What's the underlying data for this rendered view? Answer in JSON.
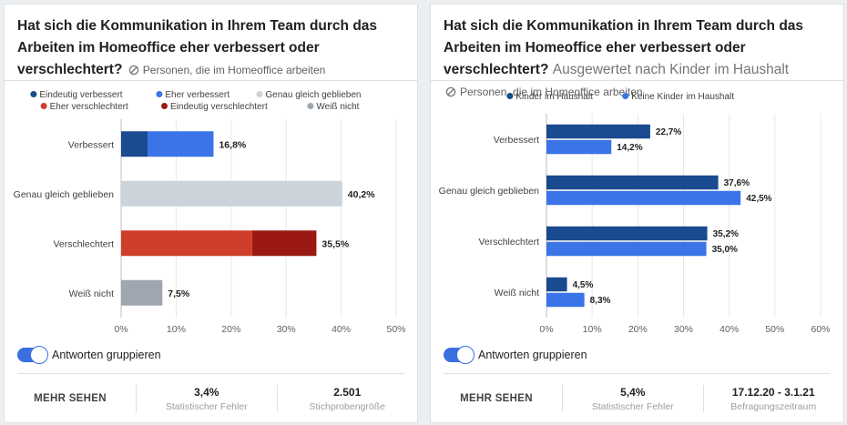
{
  "left": {
    "title": "Hat sich die Kommunikation in Ihrem Team durch das Arbeiten im Homeoffice eher verbessert oder verschlechtert?",
    "subtitle": "",
    "filter": "Personen, die im Homeoffice arbeiten",
    "toggle_label": "Antworten gruppieren",
    "more_label": "MEHR SEHEN",
    "stats": [
      {
        "value": "3,4%",
        "label": "Statistischer Fehler"
      },
      {
        "value": "2.501",
        "label": "Stichprobengröße"
      }
    ]
  },
  "right": {
    "title": "Hat sich die Kommunikation in Ihrem Team durch das Arbeiten im Homeoffice eher verbessert oder verschlechtert?",
    "subtitle": "Ausgewertet nach Kinder im Haushalt",
    "filter": "Personen, die im Homeoffice arbeiten",
    "toggle_label": "Antworten gruppieren",
    "more_label": "MEHR SEHEN",
    "stats": [
      {
        "value": "5,4%",
        "label": "Statistischer Fehler"
      },
      {
        "value": "17.12.20 - 3.1.21",
        "label": "Befragungszeitraum"
      }
    ]
  },
  "colors": {
    "dark_blue": "#1a4a8f",
    "blue": "#3b74e6",
    "light_gray": "#ccd3da",
    "red": "#cf3e2b",
    "dark_red": "#9a1a13",
    "gray": "#9ea7b0",
    "accent": "#3a6fe0"
  },
  "chart_data": [
    {
      "type": "bar",
      "orientation": "horizontal",
      "stacked": true,
      "categories": [
        "Verbessert",
        "Genau gleich geblieben",
        "Verschlechtert",
        "Weiß nicht"
      ],
      "legend": [
        {
          "name": "Eindeutig verbessert",
          "color": "#1a4a8f"
        },
        {
          "name": "Eher verbessert",
          "color": "#3b74e6"
        },
        {
          "name": "Genau gleich geblieben",
          "color": "#ccd3da"
        },
        {
          "name": "Eher verschlechtert",
          "color": "#cf3e2b"
        },
        {
          "name": "Eindeutig verschlechtert",
          "color": "#9a1a13"
        },
        {
          "name": "Weiß nicht",
          "color": "#9ea7b0"
        }
      ],
      "bars": [
        {
          "category": "Verbessert",
          "total_label": "16,8%",
          "segments": [
            {
              "series": "Eindeutig verbessert",
              "value": 4.8
            },
            {
              "series": "Eher verbessert",
              "value": 12.0
            }
          ]
        },
        {
          "category": "Genau gleich geblieben",
          "total_label": "40,2%",
          "segments": [
            {
              "series": "Genau gleich geblieben",
              "value": 40.2
            }
          ]
        },
        {
          "category": "Verschlechtert",
          "total_label": "35,5%",
          "segments": [
            {
              "series": "Eher verschlechtert",
              "value": 23.8
            },
            {
              "series": "Eindeutig verschlechtert",
              "value": 11.7
            }
          ]
        },
        {
          "category": "Weiß nicht",
          "total_label": "7,5%",
          "segments": [
            {
              "series": "Weiß nicht",
              "value": 7.5
            }
          ]
        }
      ],
      "xlim": [
        0,
        50
      ],
      "xticks": [
        "0%",
        "10%",
        "20%",
        "30%",
        "40%",
        "50%"
      ],
      "grid": true,
      "legend_position": "top"
    },
    {
      "type": "bar",
      "orientation": "horizontal",
      "stacked": false,
      "categories": [
        "Verbessert",
        "Genau gleich geblieben",
        "Verschlechtert",
        "Weiß nicht"
      ],
      "series": [
        {
          "name": "Kinder im Haushalt",
          "color": "#1a4a8f",
          "values": [
            22.7,
            37.6,
            35.2,
            4.5
          ],
          "labels": [
            "22,7%",
            "37,6%",
            "35,2%",
            "4,5%"
          ]
        },
        {
          "name": "Keine Kinder im Haushalt",
          "color": "#3b74e6",
          "values": [
            14.2,
            42.5,
            35.0,
            8.3
          ],
          "labels": [
            "14,2%",
            "42,5%",
            "35,0%",
            "8,3%"
          ]
        }
      ],
      "xlim": [
        0,
        60
      ],
      "xticks": [
        "0%",
        "10%",
        "20%",
        "30%",
        "40%",
        "50%",
        "60%"
      ],
      "grid": true,
      "legend_position": "top"
    }
  ]
}
